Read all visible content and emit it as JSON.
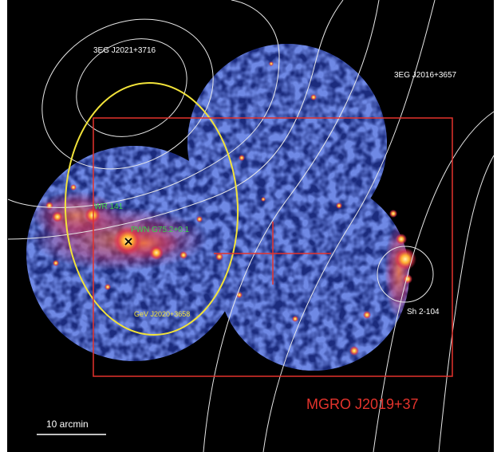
{
  "labels": {
    "egret_north": "3EG J2021+3716",
    "egret_east": "3EG J2016+3657",
    "wr": "WR 141",
    "pwn": "PWN G75.2+0.1",
    "gev": "GeV J2020+3658",
    "sh": "Sh 2-104",
    "mgro": "MGRO J2019+37",
    "scale": "10 arcmin"
  },
  "colors": {
    "background": "#000000",
    "xray_low": "#2a3fb8",
    "xray_mid": "#d0335a",
    "xray_high": "#ffd45a",
    "contour": "#e8e8e8",
    "gev_ellipse": "#f2e33a",
    "mgro_box": "#e4332c",
    "wr_label": "#38d04a",
    "pwn_marker": "x-mark-icon"
  }
}
